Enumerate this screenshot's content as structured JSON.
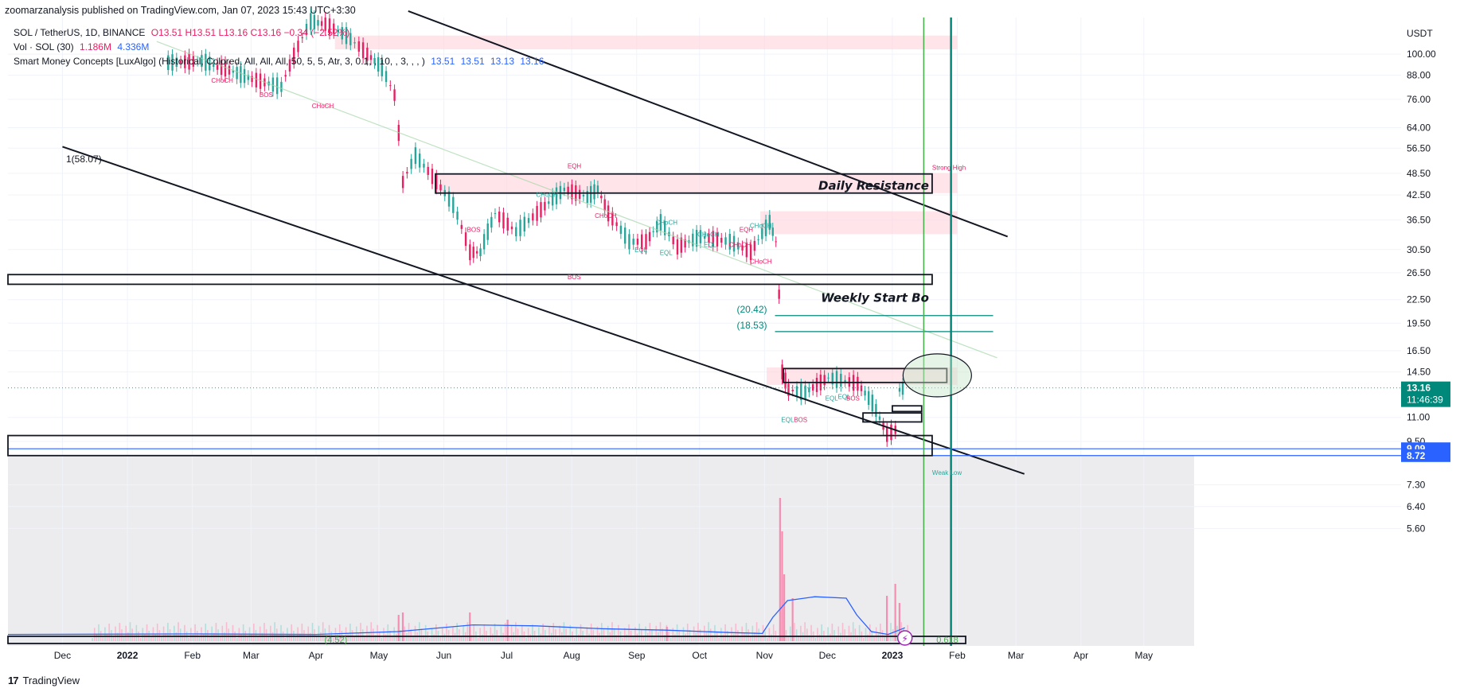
{
  "header": {
    "published_by": "zoomarzanalysis published on TradingView.com, Jan 07, 2023 15:43 UTC+3:30"
  },
  "legend": {
    "symbol": "SOL / TetherUS, 1D, BINANCE",
    "ohlc": "O13.51 H13.51 L13.16 C13.16 −0.34 (−2.52%)",
    "volume_label": "Vol · SOL (30)",
    "volume_value": "1.186M",
    "volume_ma": "4.336M",
    "indicator": "Smart Money Concepts [LuxAlgo] (Historical, Colored, All, All, All, 50, 5, 5, Atr, 3, 0.1, , 10, , 3, , , )",
    "indicator_values": [
      "13.51",
      "13.51",
      "13.13",
      "13.16"
    ]
  },
  "colors": {
    "up": "#26a69a",
    "down": "#e91e63",
    "zone_fill": "#ffd6dd",
    "green_line": "#4caf50",
    "teal_line": "#00897b",
    "blue_line": "#2962ff",
    "text": "#131722",
    "grid": "#f0f3fa"
  },
  "chart_data": {
    "type": "line",
    "title": "",
    "ylabel": "USDT",
    "yscale": "log",
    "ylim": [
      4.9,
      125
    ],
    "y_ticks": [
      100,
      88,
      76,
      64,
      56.5,
      48.5,
      42.5,
      36.5,
      30.5,
      26.5,
      22.5,
      19.5,
      16.5,
      14.5,
      11.0,
      9.5,
      7.3,
      6.4,
      5.6
    ],
    "y_tick_labels": [
      "100.00",
      "88.00",
      "76.00",
      "64.00",
      "56.50",
      "48.50",
      "42.50",
      "36.50",
      "30.50",
      "26.50",
      "22.50",
      "19.50",
      "16.50",
      "14.50",
      "11.00",
      "9.50",
      "7.30",
      "6.40",
      "5.60"
    ],
    "x_ticks": [
      "2021-12-01",
      "2022-01-01",
      "2022-02-01",
      "2022-03-01",
      "2022-04-01",
      "2022-05-01",
      "2022-06-01",
      "2022-07-01",
      "2022-08-01",
      "2022-09-01",
      "2022-10-01",
      "2022-11-01",
      "2022-12-01",
      "2023-01-01",
      "2023-02-01",
      "2023-03-01",
      "2023-04-01",
      "2023-05-01"
    ],
    "x_tick_labels": [
      "Dec",
      "2022",
      "Feb",
      "Mar",
      "Apr",
      "May",
      "Jun",
      "Jul",
      "Aug",
      "Sep",
      "Oct",
      "Nov",
      "Dec",
      "2023",
      "Feb",
      "Mar",
      "Apr",
      "May"
    ],
    "x_range": [
      "2021-11-05",
      "2023-05-25"
    ],
    "series": [
      {
        "values": [
          [
            "2022-01-20",
            95
          ],
          [
            "2022-02-05",
            96
          ],
          [
            "2022-02-20",
            90
          ],
          [
            "2022-03-01",
            86
          ],
          [
            "2022-03-15",
            82
          ],
          [
            "2022-03-29",
            122
          ],
          [
            "2022-04-05",
            120
          ],
          [
            "2022-04-15",
            112
          ],
          [
            "2022-04-25",
            100
          ],
          [
            "2022-05-02",
            92
          ],
          [
            "2022-05-08",
            78
          ],
          [
            "2022-05-12",
            46
          ],
          [
            "2022-05-18",
            54
          ],
          [
            "2022-05-28",
            46
          ],
          [
            "2022-06-05",
            40
          ],
          [
            "2022-06-13",
            30
          ],
          [
            "2022-06-18",
            30
          ],
          [
            "2022-06-25",
            38
          ],
          [
            "2022-07-05",
            34
          ],
          [
            "2022-07-15",
            38
          ],
          [
            "2022-07-28",
            44
          ],
          [
            "2022-08-08",
            42
          ],
          [
            "2022-08-13",
            44
          ],
          [
            "2022-08-18",
            38
          ],
          [
            "2022-08-28",
            32
          ],
          [
            "2022-09-05",
            32
          ],
          [
            "2022-09-12",
            36
          ],
          [
            "2022-09-20",
            31
          ],
          [
            "2022-10-01",
            33
          ],
          [
            "2022-10-15",
            32
          ],
          [
            "2022-10-25",
            30
          ],
          [
            "2022-11-03",
            36
          ],
          [
            "2022-11-06",
            32
          ],
          [
            "2022-11-09",
            14.5
          ],
          [
            "2022-11-12",
            13
          ],
          [
            "2022-11-20",
            12.8
          ],
          [
            "2022-12-01",
            14
          ],
          [
            "2022-12-15",
            13.5
          ],
          [
            "2022-12-22",
            12
          ],
          [
            "2022-12-29",
            9.9
          ],
          [
            "2023-01-02",
            10.2
          ],
          [
            "2023-01-04",
            13.0
          ],
          [
            "2023-01-07",
            13.16
          ]
        ]
      }
    ],
    "volume_ma_points": [
      [
        "2021-11-05",
        0.14
      ],
      [
        "2022-02-01",
        0.15
      ],
      [
        "2022-04-01",
        0.14
      ],
      [
        "2022-05-10",
        0.2
      ],
      [
        "2022-06-15",
        0.34
      ],
      [
        "2022-07-15",
        0.32
      ],
      [
        "2022-08-15",
        0.26
      ],
      [
        "2022-09-15",
        0.23
      ],
      [
        "2022-10-15",
        0.18
      ],
      [
        "2022-10-31",
        0.16
      ],
      [
        "2022-11-05",
        0.5
      ],
      [
        "2022-11-12",
        0.85
      ],
      [
        "2022-11-25",
        0.93
      ],
      [
        "2022-12-10",
        0.9
      ],
      [
        "2022-12-15",
        0.55
      ],
      [
        "2022-12-22",
        0.2
      ],
      [
        "2022-12-30",
        0.14
      ],
      [
        "2023-01-07",
        0.28
      ]
    ],
    "volume_bars": [
      [
        "2022-05-10",
        0.55
      ],
      [
        "2022-05-12",
        0.6
      ],
      [
        "2022-06-13",
        0.6
      ],
      [
        "2022-07-01",
        0.45
      ],
      [
        "2022-09-15",
        0.3
      ],
      [
        "2022-11-08",
        3.0
      ],
      [
        "2022-11-09",
        2.3
      ],
      [
        "2022-11-10",
        1.4
      ],
      [
        "2022-11-14",
        0.9
      ],
      [
        "2022-12-29",
        0.95
      ],
      [
        "2023-01-02",
        1.2
      ],
      [
        "2023-01-04",
        0.8
      ]
    ],
    "zones": [
      {
        "label": "Daily Resistance",
        "start": "2022-05-28",
        "end": "2023-01-20",
        "low": 43.0,
        "high": 48.3,
        "style": "box"
      },
      {
        "label": "Weekly Start Bo",
        "start": "2021-11-05",
        "end": "2023-01-20",
        "low": 24.7,
        "high": 26.2,
        "style": "box"
      },
      {
        "label": "",
        "start": "2022-11-10",
        "end": "2023-01-27",
        "low": 13.6,
        "high": 14.8,
        "style": "box"
      },
      {
        "label": "",
        "start": "2021-11-05",
        "end": "2023-01-20",
        "low": 8.72,
        "high": 9.85,
        "style": "box"
      },
      {
        "label": "",
        "start": "2022-12-18",
        "end": "2023-01-15",
        "low": 10.7,
        "high": 11.3,
        "style": "box"
      },
      {
        "label": "",
        "start": "2023-01-01",
        "end": "2023-01-15",
        "low": 11.4,
        "high": 11.8,
        "style": "box"
      },
      {
        "label": "",
        "start": "2022-05-28",
        "end": "2023-02-01",
        "low": 43.0,
        "high": 48.5,
        "style": "fill"
      },
      {
        "label": "",
        "start": "2022-10-30",
        "end": "2023-02-01",
        "low": 33.5,
        "high": 38.5,
        "style": "fill"
      },
      {
        "label": "",
        "start": "2022-11-02",
        "end": "2023-02-01",
        "low": 13.4,
        "high": 14.9,
        "style": "fill"
      },
      {
        "label": "",
        "start": "2022-04-10",
        "end": "2023-02-01",
        "low": 103,
        "high": 112,
        "style": "fill"
      }
    ],
    "channel_lines": [
      [
        [
          "2022-05-15",
          130
        ],
        [
          "2023-02-25",
          33
        ]
      ],
      [
        [
          "2021-12-01",
          57
        ],
        [
          "2023-03-05",
          7.8
        ]
      ]
    ],
    "levels": [
      {
        "label": "(20.42)",
        "value": 20.42,
        "start": "2022-11-06",
        "end": "2023-02-01",
        "color": "#00897b"
      },
      {
        "label": "(18.53)",
        "value": 18.53,
        "start": "2022-11-06",
        "end": "2023-02-01",
        "color": "#00897b"
      },
      {
        "label": "1(58.07)",
        "value": 58.07,
        "start": "2021-11-05",
        "end": "2021-11-05",
        "color": "#131722"
      }
    ],
    "vertical_lines": [
      {
        "date": "2023-01-16",
        "color": "#4caf50"
      },
      {
        "date": "2023-01-29",
        "color": "#00897b"
      }
    ],
    "horizontal_blue_lines": [
      9.09,
      8.72
    ],
    "price_labels": [
      {
        "value": "13.16",
        "sub": "11:46:39",
        "y": 13.16,
        "color": "#00897b"
      },
      {
        "value": "9.09",
        "sub": "",
        "y": 9.09,
        "color": "#2962ff"
      },
      {
        "value": "8.72",
        "sub": "",
        "y": 8.72,
        "color": "#2962ff"
      }
    ],
    "smc_labels": [
      {
        "text": "CHoCH",
        "date": "2022-02-10",
        "y": 84,
        "color": "#e91e63"
      },
      {
        "text": "BOS",
        "date": "2022-03-05",
        "y": 77,
        "color": "#e91e63"
      },
      {
        "text": "CHoCH",
        "date": "2022-03-30",
        "y": 72,
        "color": "#e91e63"
      },
      {
        "text": "BOS",
        "date": "2022-06-12",
        "y": 34,
        "color": "#e91e63"
      },
      {
        "text": "EQH",
        "date": "2022-07-30",
        "y": 50,
        "color": "#e91e63"
      },
      {
        "text": "CHoCH",
        "date": "2022-07-15",
        "y": 42,
        "color": "#26a69a"
      },
      {
        "text": "CHoCH",
        "date": "2022-08-12",
        "y": 37,
        "color": "#e91e63"
      },
      {
        "text": "CHoCH",
        "date": "2022-09-10",
        "y": 35.5,
        "color": "#26a69a"
      },
      {
        "text": "EQL",
        "date": "2022-08-31",
        "y": 30,
        "color": "#26a69a"
      },
      {
        "text": "EQL",
        "date": "2022-09-12",
        "y": 29.5,
        "color": "#26a69a"
      },
      {
        "text": "CHoCH",
        "date": "2022-09-30",
        "y": 33,
        "color": "#26a69a"
      },
      {
        "text": "EQL",
        "date": "2022-10-03",
        "y": 31,
        "color": "#26a69a"
      },
      {
        "text": "CHoCH",
        "date": "2022-10-15",
        "y": 31,
        "color": "#e91e63"
      },
      {
        "text": "EQH",
        "date": "2022-10-20",
        "y": 34,
        "color": "#e91e63"
      },
      {
        "text": "CHoCH",
        "date": "2022-10-25",
        "y": 34.8,
        "color": "#26a69a"
      },
      {
        "text": "CHoCH",
        "date": "2022-10-25",
        "y": 28,
        "color": "#e91e63"
      },
      {
        "text": "BOS",
        "date": "2022-07-30",
        "y": 25.5,
        "color": "#e91e63"
      },
      {
        "text": "EQL",
        "date": "2022-11-09",
        "y": 10.7,
        "color": "#26a69a"
      },
      {
        "text": "BOS",
        "date": "2022-11-15",
        "y": 10.7,
        "color": "#e91e63"
      },
      {
        "text": "EQL",
        "date": "2022-11-30",
        "y": 12.2,
        "color": "#26a69a"
      },
      {
        "text": "EQL",
        "date": "2022-12-06",
        "y": 12.3,
        "color": "#26a69a"
      },
      {
        "text": "BOS",
        "date": "2022-12-10",
        "y": 12.2,
        "color": "#e91e63"
      },
      {
        "text": "Strong High",
        "date": "2023-01-20",
        "y": 49.5,
        "color": "#e91e63"
      },
      {
        "text": "Weak Low",
        "date": "2023-01-20",
        "y": 7.75,
        "color": "#26a69a"
      }
    ],
    "bottom_labels": [
      {
        "text": "(4.52)",
        "date": "2022-04-05"
      },
      {
        "text": "0.618",
        "date": "2023-01-22"
      }
    ],
    "grid": true,
    "legend_position": "top-left"
  },
  "footer": {
    "brand": "TradingView"
  }
}
